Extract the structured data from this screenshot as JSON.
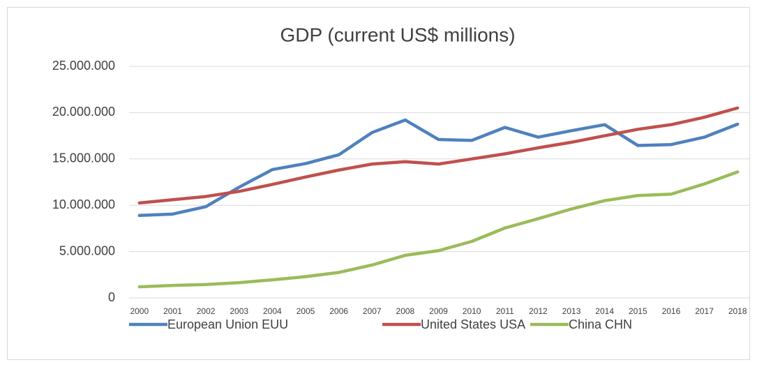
{
  "chart_data": {
    "type": "line",
    "title": "GDP (current US$ millions)",
    "categories": [
      "2000",
      "2001",
      "2002",
      "2003",
      "2004",
      "2005",
      "2006",
      "2007",
      "2008",
      "2009",
      "2010",
      "2011",
      "2012",
      "2013",
      "2014",
      "2015",
      "2016",
      "2017",
      "2018"
    ],
    "series": [
      {
        "name": "European Union EUU",
        "color": "#4f81bd",
        "values": [
          8900000,
          9050000,
          9850000,
          11950000,
          13850000,
          14500000,
          15450000,
          17850000,
          19200000,
          17100000,
          17000000,
          18400000,
          17350000,
          18050000,
          18700000,
          16450000,
          16550000,
          17350000,
          18750000
        ]
      },
      {
        "name": "United States USA",
        "color": "#c0504d",
        "values": [
          10250000,
          10600000,
          10950000,
          11500000,
          12250000,
          13050000,
          13800000,
          14450000,
          14700000,
          14450000,
          15000000,
          15550000,
          16200000,
          16800000,
          17500000,
          18200000,
          18700000,
          19500000,
          20500000
        ]
      },
      {
        "name": "China CHN",
        "color": "#9bbb59",
        "values": [
          1200000,
          1350000,
          1450000,
          1650000,
          1950000,
          2300000,
          2750000,
          3550000,
          4600000,
          5100000,
          6100000,
          7550000,
          8550000,
          9600000,
          10500000,
          11050000,
          11200000,
          12300000,
          13600000
        ]
      }
    ],
    "ylim": [
      0,
      25000000
    ],
    "yticks": [
      0,
      {
        "value": 5000000,
        "label": "5.000.000"
      },
      {
        "value": 10000000,
        "label": "10.000.000"
      },
      {
        "value": 15000000,
        "label": "15.000.000"
      },
      {
        "value": 20000000,
        "label": "20.000.000"
      },
      {
        "value": 25000000,
        "label": "25.000.000"
      }
    ],
    "grid": true,
    "legend": "bottom"
  }
}
